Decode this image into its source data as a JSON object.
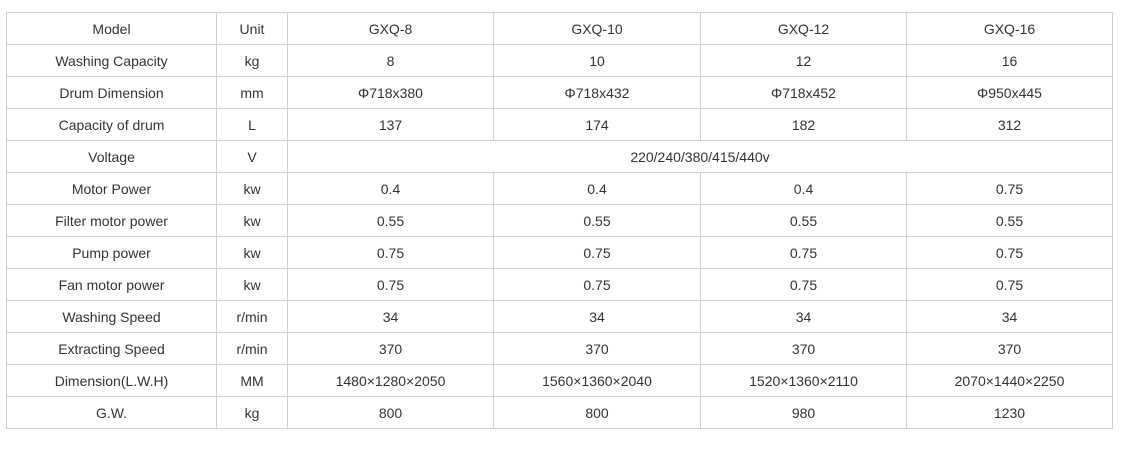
{
  "table": {
    "rows": [
      {
        "param": "Model",
        "unit": "Unit",
        "values": [
          "GXQ-8",
          "GXQ-10",
          "GXQ-12",
          "GXQ-16"
        ]
      },
      {
        "param": "Washing Capacity",
        "unit": "kg",
        "values": [
          "8",
          "10",
          "12",
          "16"
        ]
      },
      {
        "param": "Drum Dimension",
        "unit": "mm",
        "values": [
          "Φ718x380",
          "Φ718x432",
          "Φ718x452",
          "Φ950x445"
        ]
      },
      {
        "param": "Capacity of drum",
        "unit": "L",
        "values": [
          "137",
          "174",
          "182",
          "312"
        ]
      },
      {
        "param": "Voltage",
        "unit": "V",
        "merged": "220/240/380/415/440v"
      },
      {
        "param": "Motor Power",
        "unit": "kw",
        "values": [
          "0.4",
          "0.4",
          "0.4",
          "0.75"
        ]
      },
      {
        "param": "Filter motor power",
        "unit": "kw",
        "values": [
          "0.55",
          "0.55",
          "0.55",
          "0.55"
        ]
      },
      {
        "param": "Pump power",
        "unit": "kw",
        "values": [
          "0.75",
          "0.75",
          "0.75",
          "0.75"
        ]
      },
      {
        "param": "Fan motor power",
        "unit": "kw",
        "values": [
          "0.75",
          "0.75",
          "0.75",
          "0.75"
        ]
      },
      {
        "param": "Washing Speed",
        "unit": "r/min",
        "values": [
          "34",
          "34",
          "34",
          "34"
        ]
      },
      {
        "param": "Extracting Speed",
        "unit": "r/min",
        "values": [
          "370",
          "370",
          "370",
          "370"
        ]
      },
      {
        "param": "Dimension(L.W.H)",
        "unit": "MM",
        "values": [
          "1480×1280×2050",
          "1560×1360×2040",
          "1520×1360×2110",
          "2070×1440×2250"
        ]
      },
      {
        "param": "G.W.",
        "unit": "kg",
        "values": [
          "800",
          "800",
          "980",
          "1230"
        ]
      }
    ]
  }
}
